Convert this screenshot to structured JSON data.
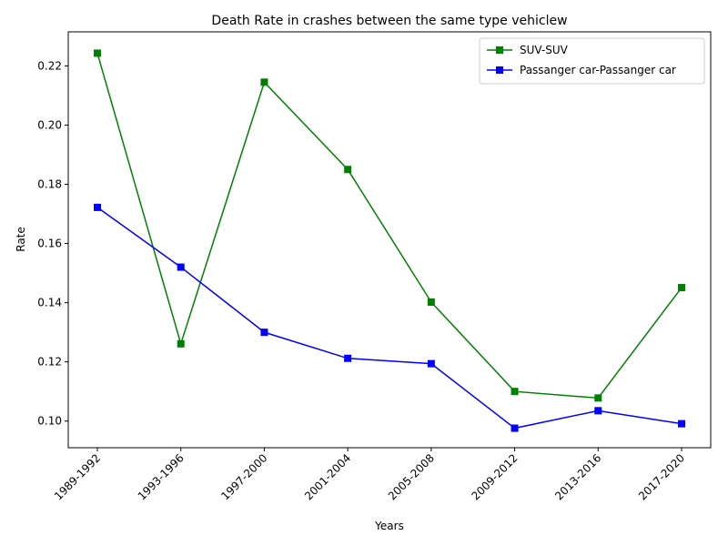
{
  "chart_data": {
    "type": "line",
    "title": "Death Rate in crashes between the same type vehiclew",
    "xlabel": "Years",
    "ylabel": "Rate",
    "categories": [
      "1989-1992",
      "1993-1996",
      "1997-2000",
      "2001-2004",
      "2005-2008",
      "2009-2012",
      "2013-2016",
      "2017-2020"
    ],
    "ylim": [
      0.091,
      0.2315
    ],
    "yticks": [
      "0.10",
      "0.12",
      "0.14",
      "0.16",
      "0.18",
      "0.20",
      "0.22"
    ],
    "grid": false,
    "legend_position": "top-right",
    "marker": "square",
    "series": [
      {
        "name": "SUV-SUV",
        "color": "#008000",
        "values": [
          0.2243,
          0.1261,
          0.2145,
          0.185,
          0.1402,
          0.11,
          0.1078,
          0.1451
        ]
      },
      {
        "name": "Passanger car-Passanger car",
        "color": "#0000ff",
        "values": [
          0.1722,
          0.152,
          0.13,
          0.1212,
          0.1194,
          0.0976,
          0.1035,
          0.0991
        ]
      }
    ]
  }
}
